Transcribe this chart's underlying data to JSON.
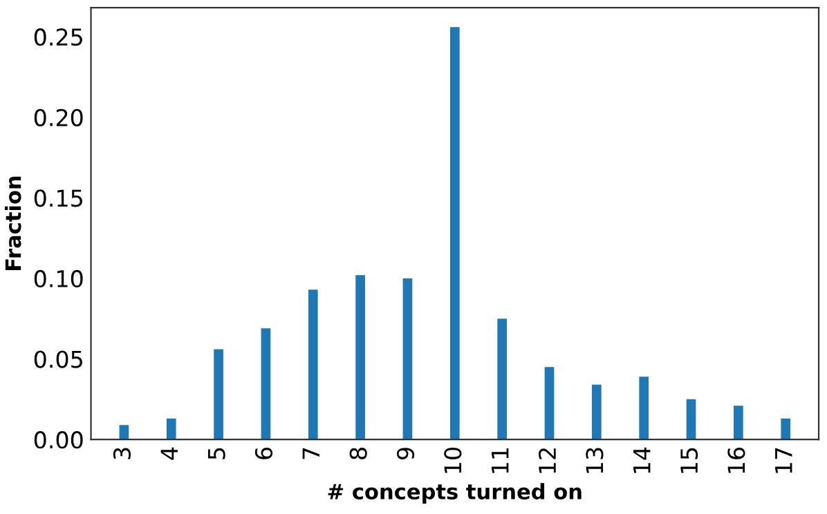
{
  "chart_data": {
    "type": "bar",
    "xlabel": "# concepts turned on",
    "ylabel": "Fraction",
    "categories": [
      "3",
      "4",
      "5",
      "6",
      "7",
      "8",
      "9",
      "10",
      "11",
      "12",
      "13",
      "14",
      "15",
      "16",
      "17"
    ],
    "values": [
      0.009,
      0.013,
      0.056,
      0.069,
      0.093,
      0.102,
      0.1,
      0.256,
      0.075,
      0.045,
      0.034,
      0.039,
      0.025,
      0.021,
      0.013
    ],
    "color": "#1f77b4",
    "ylim": [
      0,
      0.268
    ],
    "yticks": [
      {
        "value": 0,
        "label": "0.00"
      },
      {
        "value": 0.05,
        "label": "0.05"
      },
      {
        "value": 0.1,
        "label": "0.10"
      },
      {
        "value": 0.15,
        "label": "0.15"
      },
      {
        "value": 0.2,
        "label": "0.20"
      },
      {
        "value": 0.25,
        "label": "0.25"
      }
    ],
    "grid": false
  }
}
